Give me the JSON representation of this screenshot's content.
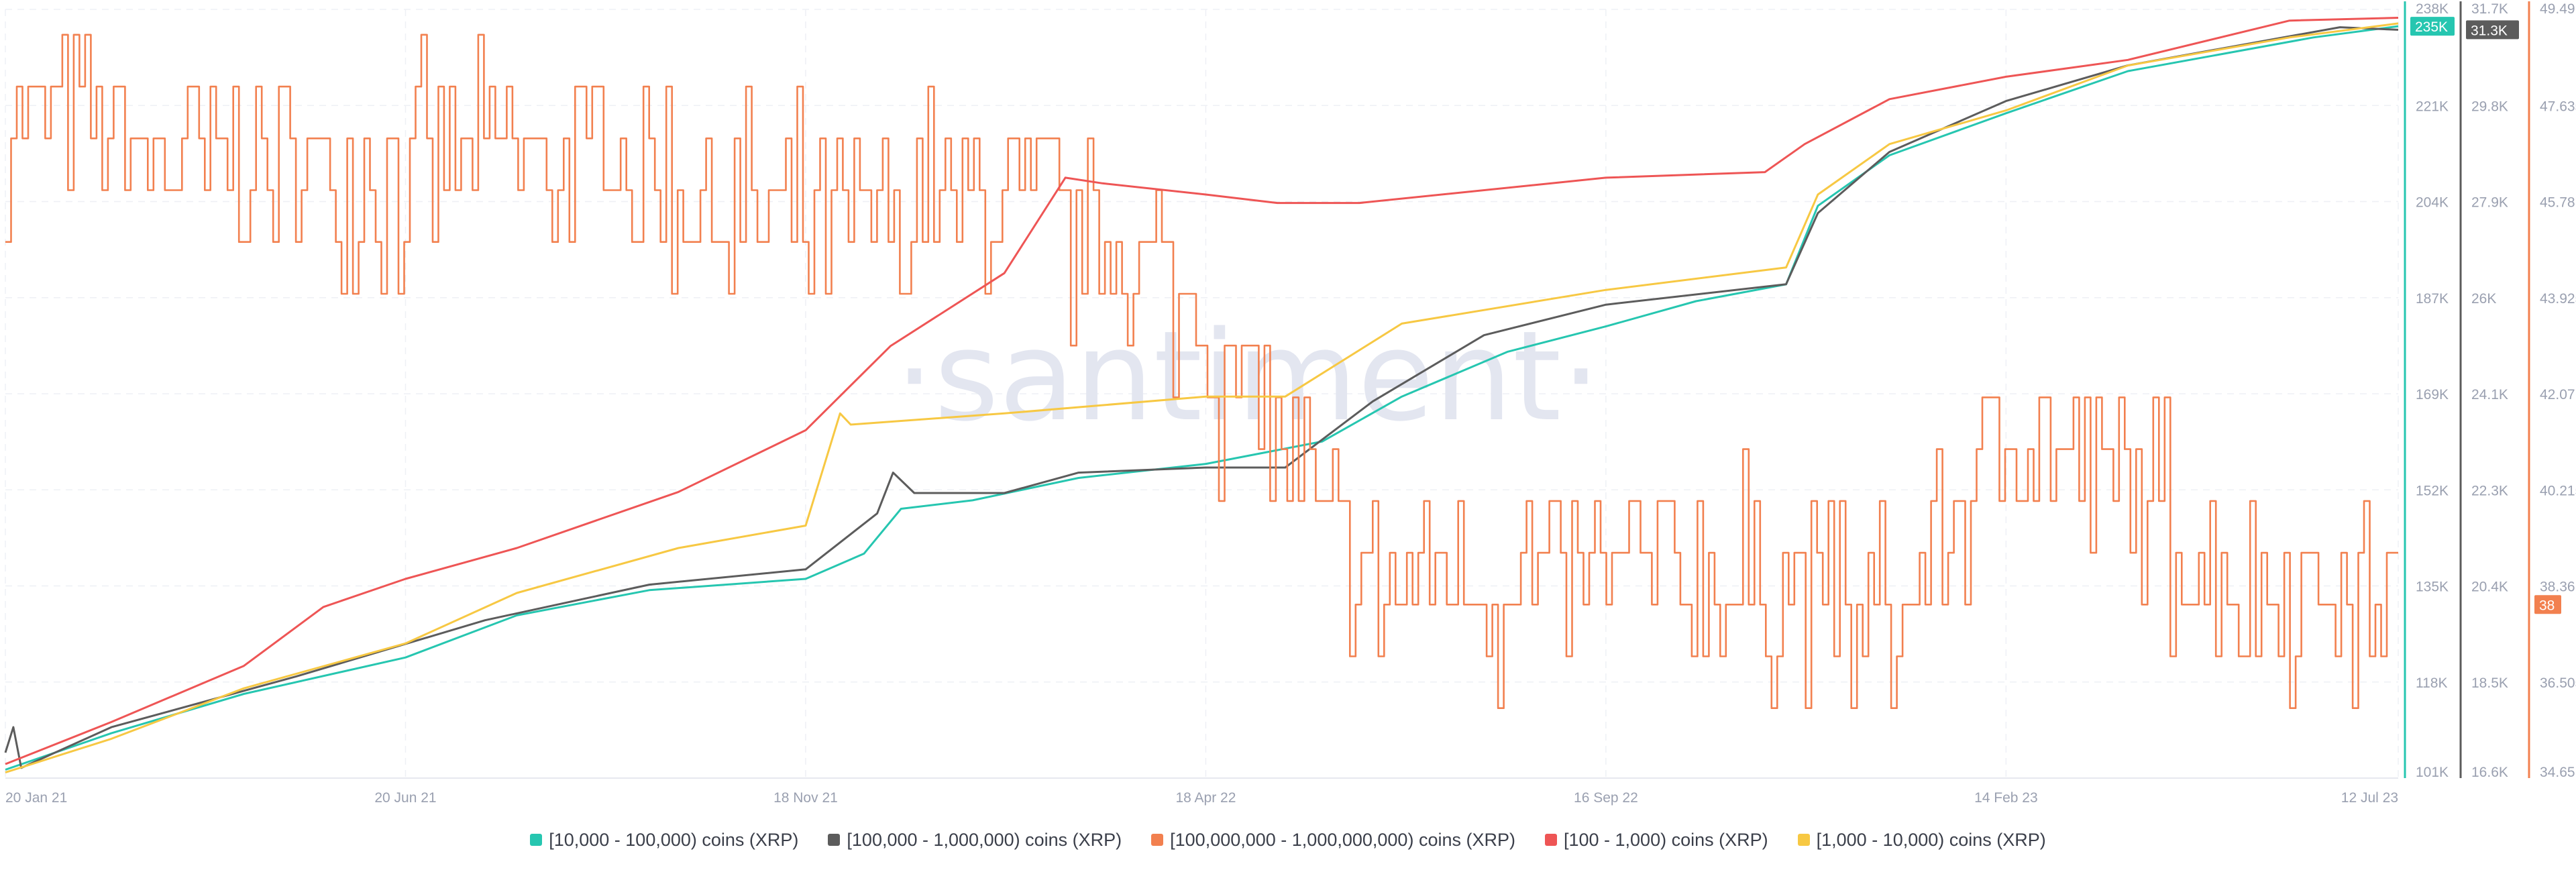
{
  "watermark": "·santiment·",
  "chart_data": {
    "type": "line",
    "x_start": "2021-01-20",
    "x_end": "2023-07-12",
    "x_ticks": [
      {
        "date": "2021-01-20",
        "label": "20 Jan 21"
      },
      {
        "date": "2021-06-20",
        "label": "20 Jun 21"
      },
      {
        "date": "2021-11-18",
        "label": "18 Nov 21"
      },
      {
        "date": "2022-04-18",
        "label": "18 Apr 22"
      },
      {
        "date": "2022-09-16",
        "label": "16 Sep 22"
      },
      {
        "date": "2023-02-14",
        "label": "14 Feb 23"
      },
      {
        "date": "2023-07-12",
        "label": "12 Jul 23"
      }
    ],
    "axes": [
      {
        "id": "teal",
        "color": "#26c6b0",
        "range": [
          101000,
          238000
        ],
        "ticks": [
          "238K",
          "221K",
          "204K",
          "187K",
          "169K",
          "152K",
          "135K",
          "118K",
          "101K"
        ],
        "current": "235K"
      },
      {
        "id": "gray",
        "color": "#5c5c5c",
        "range": [
          16600,
          31700
        ],
        "ticks": [
          "31.7K",
          "29.8K",
          "27.9K",
          "26K",
          "24.1K",
          "22.3K",
          "20.4K",
          "18.5K",
          "16.6K"
        ],
        "current": "31.3K"
      },
      {
        "id": "orange",
        "color": "#f2804f",
        "range": [
          34.65,
          49.49
        ],
        "ticks": [
          "49.49",
          "47.635",
          "45.78",
          "43.925",
          "42.07",
          "40.215",
          "38.36",
          "36.505",
          "34.65"
        ],
        "current": "38"
      }
    ],
    "series": [
      {
        "name": "[10,000 - 100,000) coins (XRP)",
        "color": "#26c6b0",
        "axis": "teal",
        "points": [
          [
            "2021-01-20",
            102500
          ],
          [
            "2021-03-01",
            109000
          ],
          [
            "2021-04-20",
            116000
          ],
          [
            "2021-06-20",
            122500
          ],
          [
            "2021-08-01",
            130000
          ],
          [
            "2021-09-20",
            134500
          ],
          [
            "2021-11-18",
            136500
          ],
          [
            "2021-12-10",
            141000
          ],
          [
            "2021-12-24",
            149000
          ],
          [
            "2022-01-20",
            150500
          ],
          [
            "2022-03-01",
            154500
          ],
          [
            "2022-04-18",
            157000
          ],
          [
            "2022-06-01",
            161000
          ],
          [
            "2022-07-01",
            169000
          ],
          [
            "2022-08-10",
            177000
          ],
          [
            "2022-09-16",
            181500
          ],
          [
            "2022-10-20",
            186000
          ],
          [
            "2022-11-23",
            189000
          ],
          [
            "2022-12-05",
            203000
          ],
          [
            "2023-01-01",
            212000
          ],
          [
            "2023-02-14",
            219500
          ],
          [
            "2023-04-01",
            227000
          ],
          [
            "2023-06-10",
            233000
          ],
          [
            "2023-07-12",
            235000
          ]
        ]
      },
      {
        "name": "[100,000  - 1,000,000) coins (XRP)",
        "color": "#5c5c5c",
        "axis": "gray",
        "points": [
          [
            "2021-01-20",
            17100
          ],
          [
            "2021-01-23",
            17600
          ],
          [
            "2021-01-26",
            16800
          ],
          [
            "2021-03-01",
            17600
          ],
          [
            "2021-05-10",
            18600
          ],
          [
            "2021-07-20",
            19700
          ],
          [
            "2021-09-20",
            20400
          ],
          [
            "2021-11-18",
            20700
          ],
          [
            "2021-12-15",
            21800
          ],
          [
            "2021-12-21",
            22600
          ],
          [
            "2021-12-29",
            22200
          ],
          [
            "2022-02-01",
            22200
          ],
          [
            "2022-03-01",
            22600
          ],
          [
            "2022-04-18",
            22700
          ],
          [
            "2022-05-18",
            22700
          ],
          [
            "2022-06-20",
            24000
          ],
          [
            "2022-08-01",
            25300
          ],
          [
            "2022-09-16",
            25900
          ],
          [
            "2022-11-23",
            26300
          ],
          [
            "2022-12-05",
            27700
          ],
          [
            "2023-01-01",
            28900
          ],
          [
            "2023-02-14",
            29900
          ],
          [
            "2023-04-01",
            30600
          ],
          [
            "2023-06-20",
            31350
          ],
          [
            "2023-07-12",
            31300
          ]
        ]
      },
      {
        "name": "[100,000,000 - 1,000,000,000) coins (XRP)",
        "color": "#f2804f",
        "axis": "orange",
        "generated": true,
        "anchors": [
          [
            "2021-01-20",
            47.4
          ],
          [
            "2021-04-01",
            46.4
          ],
          [
            "2021-06-01",
            46.5
          ],
          [
            "2021-09-01",
            46.6
          ],
          [
            "2021-11-18",
            45.0
          ],
          [
            "2022-02-01",
            45.9
          ],
          [
            "2022-04-01",
            44.2
          ],
          [
            "2022-05-01",
            42.5
          ],
          [
            "2022-06-15",
            38.3
          ],
          [
            "2022-09-16",
            38.6
          ],
          [
            "2022-11-23",
            38.4
          ],
          [
            "2023-01-05",
            37.6
          ],
          [
            "2023-02-14",
            41.4
          ],
          [
            "2023-04-01",
            40.2
          ],
          [
            "2023-05-01",
            38.5
          ],
          [
            "2023-07-12",
            38.0
          ]
        ],
        "range": 2.0,
        "seed": 7
      },
      {
        "name": "[100 - 1,000) coins (XRP)",
        "color": "#ee5555",
        "axis": "teal",
        "points": [
          [
            "2021-01-20",
            103500
          ],
          [
            "2021-03-01",
            111000
          ],
          [
            "2021-04-20",
            121000
          ],
          [
            "2021-05-20",
            131500
          ],
          [
            "2021-06-20",
            136500
          ],
          [
            "2021-08-01",
            142000
          ],
          [
            "2021-10-01",
            152000
          ],
          [
            "2021-11-18",
            163000
          ],
          [
            "2021-12-20",
            178000
          ],
          [
            "2022-02-01",
            191000
          ],
          [
            "2022-02-24",
            208000
          ],
          [
            "2022-03-10",
            207000
          ],
          [
            "2022-04-18",
            205000
          ],
          [
            "2022-05-15",
            203500
          ],
          [
            "2022-06-15",
            203500
          ],
          [
            "2022-09-16",
            208000
          ],
          [
            "2022-11-15",
            209000
          ],
          [
            "2022-11-30",
            214000
          ],
          [
            "2023-01-01",
            222000
          ],
          [
            "2023-02-14",
            226000
          ],
          [
            "2023-04-01",
            229000
          ],
          [
            "2023-06-01",
            236000
          ],
          [
            "2023-07-12",
            236500
          ]
        ]
      },
      {
        "name": "[1,000 - 10,000) coins (XRP)",
        "color": "#f7c843",
        "axis": "teal",
        "points": [
          [
            "2021-01-20",
            102000
          ],
          [
            "2021-03-01",
            108000
          ],
          [
            "2021-04-20",
            117000
          ],
          [
            "2021-06-20",
            125000
          ],
          [
            "2021-08-01",
            134000
          ],
          [
            "2021-10-01",
            142000
          ],
          [
            "2021-11-18",
            146000
          ],
          [
            "2021-12-01",
            166000
          ],
          [
            "2021-12-05",
            164000
          ],
          [
            "2022-02-01",
            166000
          ],
          [
            "2022-04-18",
            169000
          ],
          [
            "2022-05-18",
            169000
          ],
          [
            "2022-07-01",
            182000
          ],
          [
            "2022-09-16",
            188000
          ],
          [
            "2022-11-23",
            192000
          ],
          [
            "2022-12-05",
            205000
          ],
          [
            "2023-01-01",
            214000
          ],
          [
            "2023-02-14",
            220000
          ],
          [
            "2023-04-01",
            228000
          ],
          [
            "2023-06-01",
            233000
          ],
          [
            "2023-07-12",
            235500
          ]
        ]
      }
    ],
    "legend_placement": "bottom-center",
    "grid": true
  }
}
